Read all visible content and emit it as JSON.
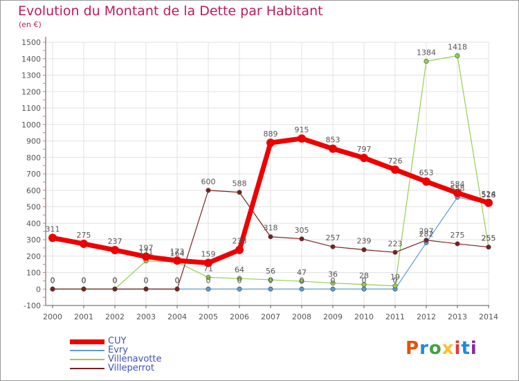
{
  "title": "Evolution du Montant de la Dette par Habitant",
  "subtitle": "(en €)",
  "logo": {
    "text": "Proxiti",
    "colors": [
      "#e65100",
      "#1e88e5",
      "#43a047",
      "#fbc02d",
      "#e53935",
      "#1e88e5",
      "#8e24aa"
    ]
  },
  "chart_data": {
    "type": "line",
    "x": [
      "2000",
      "2001",
      "2002",
      "2003",
      "2004",
      "2005",
      "2006",
      "2007",
      "2008",
      "2009",
      "2010",
      "2011",
      "2012",
      "2013",
      "2014"
    ],
    "ylim": [
      -100,
      1500
    ],
    "yticks": [
      "-100",
      "0",
      "100",
      "200",
      "300",
      "400",
      "500",
      "600",
      "700",
      "800",
      "900",
      "1000",
      "1100",
      "1200",
      "1300",
      "1400",
      "1500"
    ],
    "grid": true,
    "legend_position": "bottom-left",
    "series": [
      {
        "name": "CUY",
        "color": "#ee0000",
        "width": 7,
        "values": [
          311,
          275,
          237,
          197,
          173,
          159,
          238,
          889,
          915,
          853,
          797,
          726,
          653,
          584,
          524
        ],
        "labels": [
          "311",
          "275",
          "237",
          "197",
          "173",
          "159",
          "238",
          "889",
          "915",
          "853",
          "797",
          "726",
          "653",
          "584",
          "524"
        ]
      },
      {
        "name": "Evry",
        "color": "#5b9bd5",
        "width": 1.2,
        "values": [
          0,
          0,
          0,
          0,
          0,
          0,
          0,
          0,
          0,
          0,
          0,
          0,
          282,
          558,
          518
        ],
        "labels": [
          "0",
          "0",
          "0",
          "0",
          "0",
          "0",
          "0",
          "0",
          "0",
          "0",
          "0",
          "0",
          "282",
          "558",
          "518"
        ]
      },
      {
        "name": "Villenavotte",
        "color": "#92d050",
        "width": 1.2,
        "values": [
          0,
          0,
          0,
          171,
          164,
          71,
          64,
          56,
          47,
          36,
          28,
          19,
          1384,
          1418,
          255
        ],
        "labels": [
          "0",
          "0",
          "0",
          "171",
          "164",
          "71",
          "64",
          "56",
          "47",
          "36",
          "28",
          "19",
          "1384",
          "1418",
          "255"
        ]
      },
      {
        "name": "Villeperrot",
        "color": "#7b1f1f",
        "width": 1.2,
        "values": [
          0,
          0,
          0,
          0,
          0,
          600,
          588,
          318,
          305,
          257,
          239,
          223,
          297,
          275,
          255
        ],
        "labels": [
          "0",
          "0",
          "0",
          "0",
          "0",
          "600",
          "588",
          "318",
          "305",
          "257",
          "239",
          "223",
          "297",
          "275",
          "255"
        ]
      }
    ]
  }
}
